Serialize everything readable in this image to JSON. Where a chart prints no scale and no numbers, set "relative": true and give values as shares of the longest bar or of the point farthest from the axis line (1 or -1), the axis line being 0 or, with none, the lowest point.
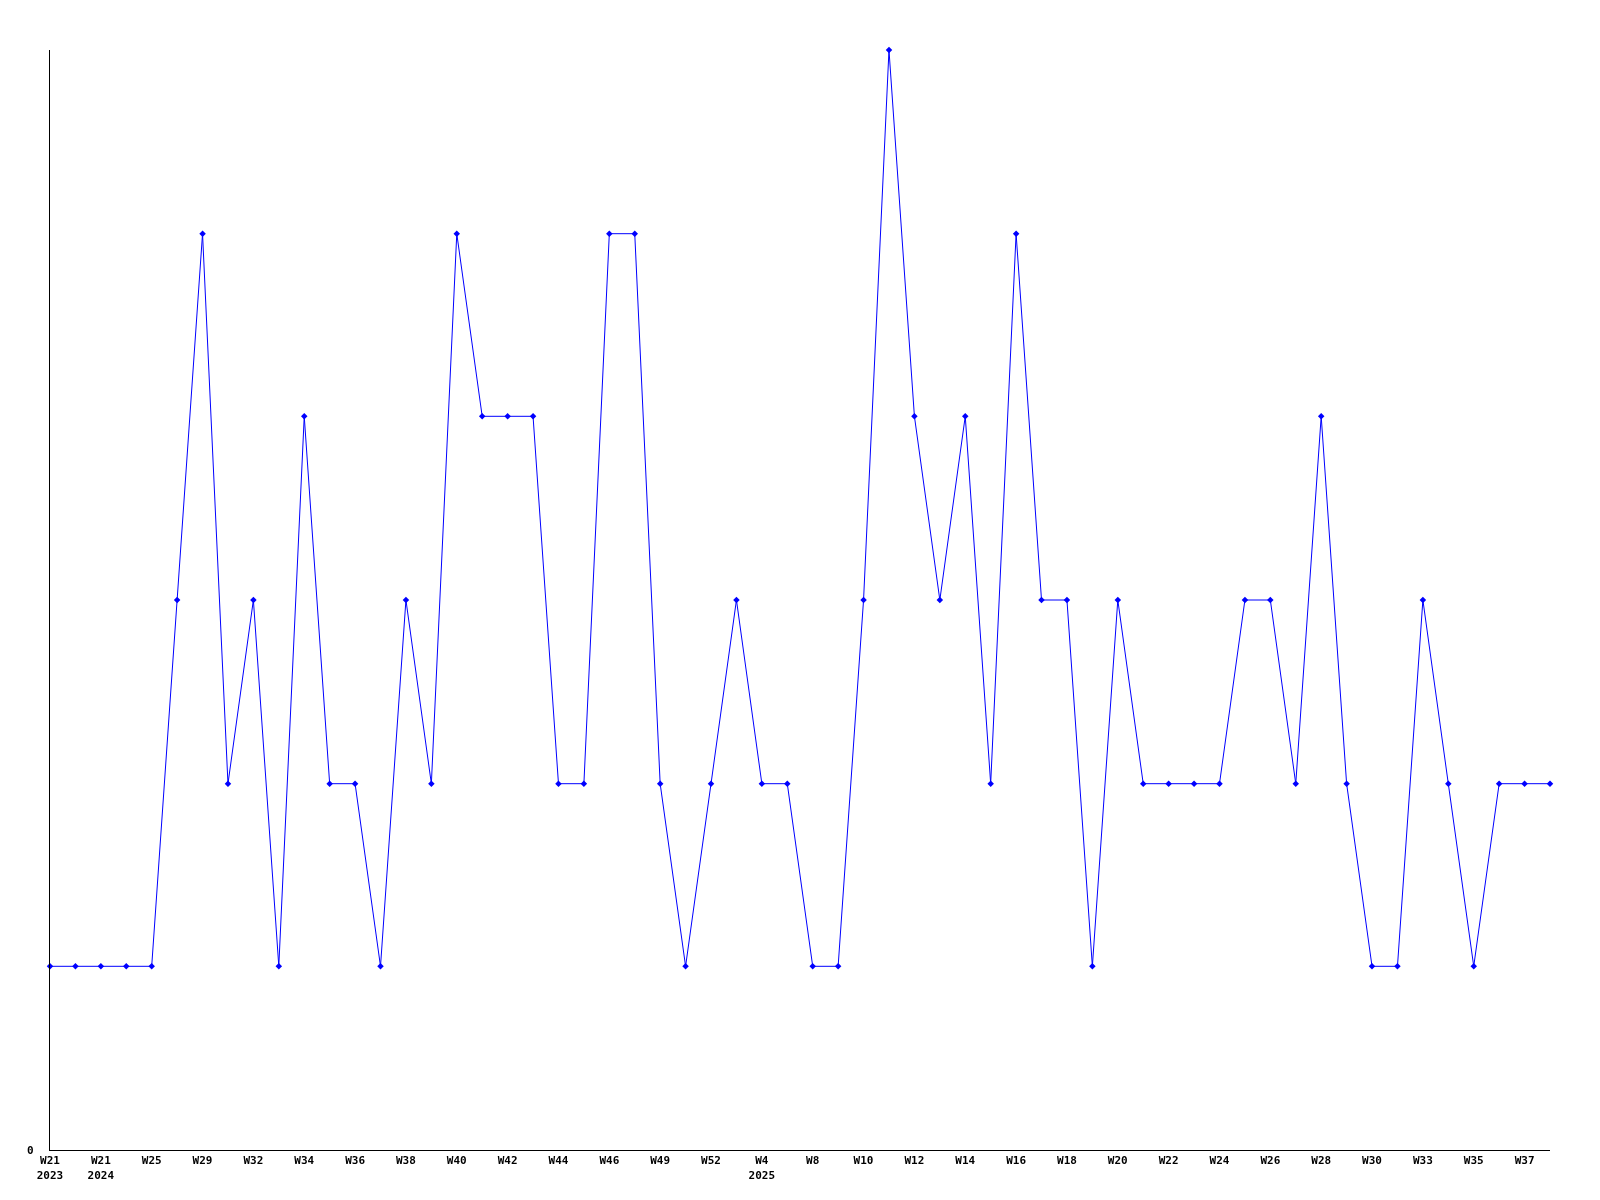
{
  "chart_data": {
    "type": "line",
    "relative": true,
    "marker": "diamond",
    "annotations": [
      "0"
    ],
    "categories": [
      "W21\n2023",
      null,
      "W21\n2024",
      null,
      "W25",
      null,
      "W29",
      null,
      "W32",
      null,
      "W34",
      null,
      "W36",
      null,
      "W38",
      null,
      "W40",
      null,
      "W42",
      null,
      "W44",
      null,
      "W46",
      null,
      "W49",
      null,
      "W52",
      null,
      "W4\n2025",
      null,
      "W8",
      null,
      "W10",
      null,
      "W12",
      null,
      "W14",
      null,
      "W16",
      null,
      "W18",
      null,
      "W20",
      null,
      "W22",
      null,
      "W24",
      null,
      "W26",
      null,
      "W28",
      null,
      "W30",
      null,
      "W33",
      null,
      "W35",
      null,
      "W37",
      null
    ],
    "series": [
      {
        "color": "#0000ff",
        "values": [
          0.167,
          0.167,
          0.167,
          0.167,
          0.167,
          0.5,
          0.833,
          0.333,
          0.5,
          0.167,
          0.667,
          0.333,
          0.333,
          0.167,
          0.5,
          0.333,
          0.833,
          0.667,
          0.667,
          0.667,
          0.333,
          0.333,
          0.833,
          0.833,
          0.333,
          0.167,
          0.333,
          0.5,
          0.333,
          0.333,
          0.167,
          0.167,
          0.5,
          1,
          0.667,
          0.5,
          0.667,
          0.333,
          0.833,
          0.5,
          0.5,
          0.167,
          0.5,
          0.333,
          0.333,
          0.333,
          0.333,
          0.5,
          0.5,
          0.333,
          0.667,
          0.333,
          0.167,
          0.167,
          0.5,
          0.333,
          0.167,
          0.333,
          0.333,
          0.333
        ]
      }
    ]
  }
}
